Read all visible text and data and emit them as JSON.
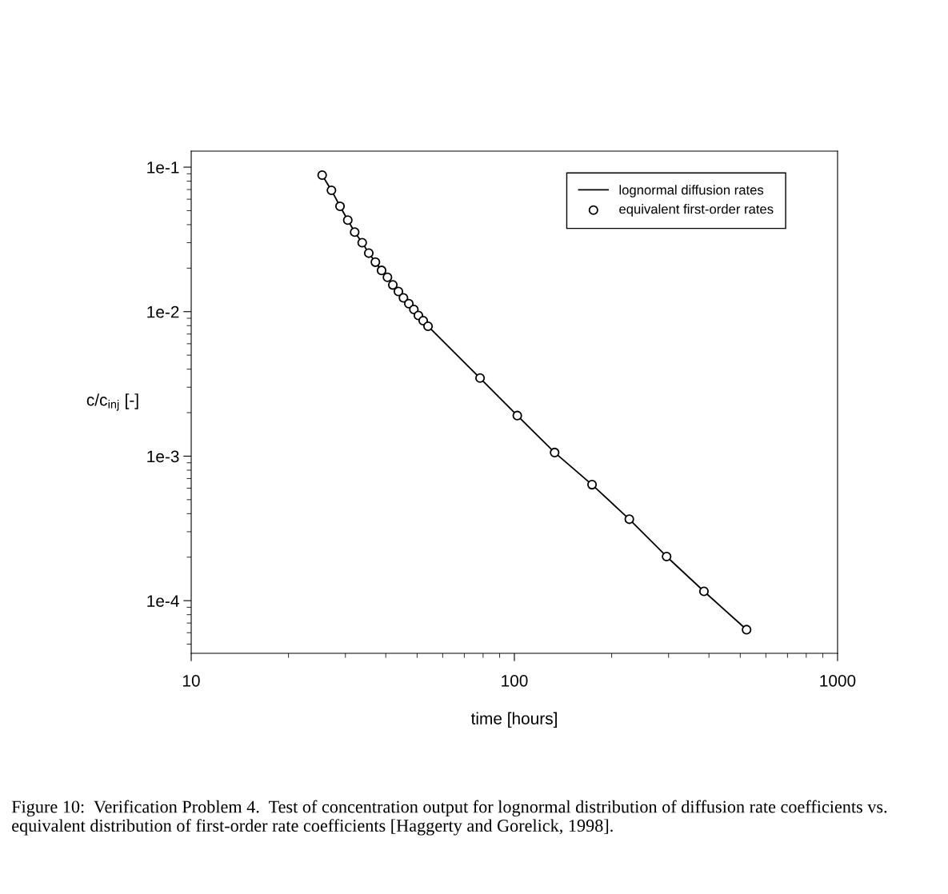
{
  "chart_data": {
    "type": "line",
    "xlabel": "time [hours]",
    "ylabel": "c/c$_{inj}$ [-]",
    "log": "xy",
    "xlim": [
      10,
      1000
    ],
    "xticks": [
      10,
      100,
      1000
    ],
    "ylim": [
      4.32e-05,
      0.129
    ],
    "yticks": [
      {
        "value": 0.1,
        "label": "1e-1"
      },
      {
        "value": 0.01,
        "label": "1e-2"
      },
      {
        "value": 0.001,
        "label": "1e-3"
      },
      {
        "value": 0.0001,
        "label": "1e-4"
      }
    ],
    "grid": false,
    "legend": "top right",
    "series": [
      {
        "name": "lognormal diffusion rates",
        "color": "#000000",
        "marker": "none",
        "line_style": "solid",
        "x": [
          25.42,
          27.16,
          28.87,
          30.51,
          32.05,
          33.81,
          35.44,
          37.15,
          38.82,
          40.48,
          42.06,
          43.77,
          45.37,
          47.14,
          48.86,
          50.47,
          52.22,
          54.05,
          78.3,
          102.1,
          133.2,
          173.9,
          226.8,
          295.8,
          386.0,
          523.0
        ],
        "values": [
          0.0881,
          0.0692,
          0.0536,
          0.043,
          0.0355,
          0.03,
          0.0254,
          0.022,
          0.0193,
          0.0173,
          0.0153,
          0.0138,
          0.01246,
          0.01136,
          0.01035,
          0.00942,
          0.00866,
          0.00793,
          0.00347,
          0.00191,
          0.00106,
          0.000635,
          0.000366,
          0.000202,
          0.000116,
          6.3e-05
        ]
      },
      {
        "name": "equivalent first-order rates",
        "type": "scatter",
        "color": "#000000",
        "marker": "circle",
        "x": [
          25.42,
          27.16,
          28.87,
          30.51,
          32.05,
          33.81,
          35.44,
          37.15,
          38.82,
          40.48,
          42.06,
          43.77,
          45.37,
          47.14,
          48.86,
          50.47,
          52.22,
          54.05,
          78.3,
          102.1,
          133.2,
          173.9,
          226.8,
          295.8,
          386.0,
          523.0
        ],
        "values": [
          0.0881,
          0.0692,
          0.0536,
          0.043,
          0.0355,
          0.03,
          0.0254,
          0.022,
          0.0193,
          0.0173,
          0.0153,
          0.0138,
          0.01246,
          0.01136,
          0.01035,
          0.00942,
          0.00866,
          0.00793,
          0.00347,
          0.00191,
          0.00106,
          0.000635,
          0.000366,
          0.000202,
          0.000116,
          6.3e-05
        ]
      }
    ],
    "annotations": [
      "Figure 10:  Verification Problem 4.  Test of concentration output for lognormal distribution of diffusion rate coefficients vs. equivalent distribution of first-order rate coefficients [Haggerty and Gorelick, 1998]."
    ]
  }
}
